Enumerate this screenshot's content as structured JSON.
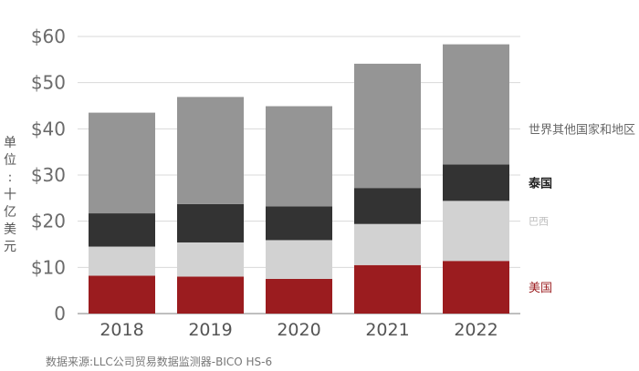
{
  "chart_data": {
    "type": "bar",
    "stacked": true,
    "categories": [
      "2018",
      "2019",
      "2020",
      "2021",
      "2022"
    ],
    "series": [
      {
        "name": "美国",
        "color": "#9b1c1f",
        "values": [
          8.2,
          8.0,
          7.5,
          10.5,
          11.4
        ]
      },
      {
        "name": "巴西",
        "color": "#d2d2d2",
        "values": [
          6.3,
          7.4,
          8.4,
          8.9,
          13.0
        ]
      },
      {
        "name": "泰国",
        "color": "#333333",
        "values": [
          7.2,
          8.3,
          7.3,
          7.8,
          7.9
        ]
      },
      {
        "name": "世界其他国家和地区",
        "color": "#959595",
        "values": [
          21.8,
          23.2,
          21.7,
          26.9,
          26.0
        ]
      }
    ],
    "ylabel": "单位:十亿美元",
    "ylabel_chars": [
      "单",
      "位",
      ":",
      "十",
      "亿",
      "美",
      "元"
    ],
    "ylim": [
      0,
      60
    ],
    "yticks": [
      0,
      10,
      20,
      30,
      40,
      50,
      60
    ],
    "ytick_labels": [
      "0",
      "$10",
      "$20",
      "$30",
      "$40",
      "$50",
      "$60"
    ],
    "grid": true,
    "legend_placement": "right",
    "legend_colors": {
      "美国": "#9b1c1f",
      "巴西": "#bdbdbd",
      "泰国": "#222222",
      "世界其他国家和地区": "#666666"
    }
  },
  "source": "数据来源:LLC公司贸易数据监测器-BICO HS-6"
}
